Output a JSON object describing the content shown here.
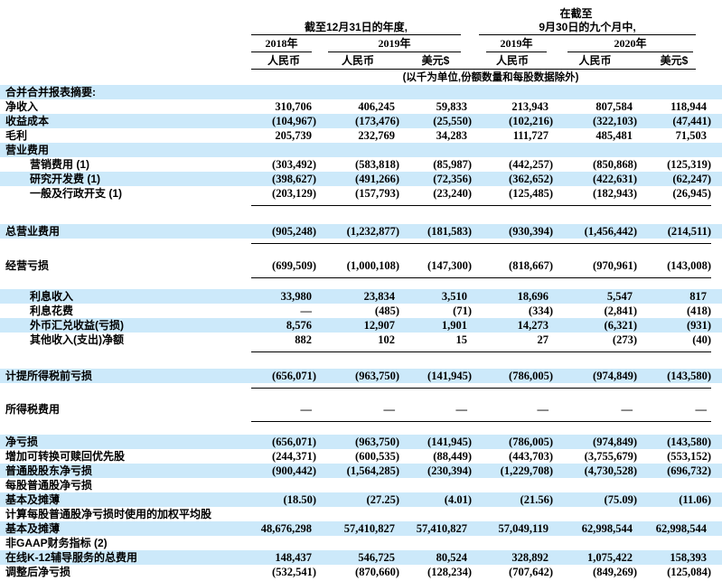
{
  "header": {
    "group2_pre": "在截至",
    "group1_title": "截至12月31日的年度,",
    "group2_title": "9月30日的九个月中,",
    "years": [
      "2018年",
      "2019年",
      "2019年",
      "2020年"
    ],
    "currencies": [
      "人民币",
      "人民币",
      "美元$",
      "人民币",
      "人民币",
      "美元$"
    ],
    "units_note": "(以千为单位,份额数量和每股数据除外)"
  },
  "colors": {
    "band": "#cce9fa",
    "rule": "#000000"
  },
  "rows": [
    {
      "type": "section",
      "label": "合并合并报表摘要:",
      "band": true
    },
    {
      "type": "data",
      "label": "净收入",
      "values": [
        "310,706",
        "406,245",
        "59,833",
        "213,943",
        "807,584",
        "118,944"
      ]
    },
    {
      "type": "data",
      "label": "收益成本",
      "band": true,
      "values": [
        "(104,967)",
        "(173,476)",
        "(25,550)",
        "(102,216)",
        "(322,103)",
        "(47,441)"
      ]
    },
    {
      "type": "data",
      "label": "毛利",
      "values": [
        "205,739",
        "232,769",
        "34,283",
        "111,727",
        "485,481",
        "71,503"
      ]
    },
    {
      "type": "section",
      "label": "营业费用",
      "band": true
    },
    {
      "type": "data",
      "label": "营销费用 (1)",
      "indent": true,
      "values": [
        "(303,492)",
        "(583,818)",
        "(85,987)",
        "(442,257)",
        "(850,868)",
        "(125,319)"
      ]
    },
    {
      "type": "data",
      "label": "研究开发费 (1)",
      "indent": true,
      "band": true,
      "values": [
        "(398,627)",
        "(491,266)",
        "(72,356)",
        "(362,652)",
        "(422,631)",
        "(62,247)"
      ]
    },
    {
      "type": "data",
      "label": "一般及行政开支 (1)",
      "indent": true,
      "underline": true,
      "values": [
        "(203,129)",
        "(157,793)",
        "(23,240)",
        "(125,485)",
        "(182,943)",
        "(26,945)"
      ]
    },
    {
      "type": "spacer",
      "h": 20
    },
    {
      "type": "data",
      "label": "总营业费用",
      "band": true,
      "underline": true,
      "values": [
        "(905,248)",
        "(1,232,877)",
        "(181,583)",
        "(930,394)",
        "(1,456,442)",
        "(214,511)"
      ]
    },
    {
      "type": "spacer",
      "h": 16
    },
    {
      "type": "data",
      "label": "经营亏损",
      "underline": true,
      "values": [
        "(699,509)",
        "(1,000,108)",
        "(147,300)",
        "(818,667)",
        "(970,961)",
        "(143,008)"
      ]
    },
    {
      "type": "spacer",
      "h": 12
    },
    {
      "type": "data",
      "label": "利息收入",
      "indent": true,
      "band": true,
      "values": [
        "33,980",
        "23,834",
        "3,510",
        "18,696",
        "5,547",
        "817"
      ]
    },
    {
      "type": "data",
      "label": "利息花费",
      "indent": true,
      "values": [
        "—",
        "(485)",
        "(71)",
        "(334)",
        "(2,841)",
        "(418)"
      ]
    },
    {
      "type": "data",
      "label": "外币汇兑收益(亏损)",
      "indent": true,
      "band": true,
      "values": [
        "8,576",
        "12,907",
        "1,901",
        "14,273",
        "(6,321)",
        "(931)"
      ]
    },
    {
      "type": "data",
      "label": "其他收入(支出)净额",
      "indent": true,
      "underline": true,
      "values": [
        "882",
        "102",
        "15",
        "27",
        "(273)",
        "(40)"
      ]
    },
    {
      "type": "spacer",
      "h": 18
    },
    {
      "type": "data",
      "label": "计提所得税前亏损",
      "band": true,
      "underline": true,
      "values": [
        "(656,071)",
        "(963,750)",
        "(141,945)",
        "(786,005)",
        "(974,849)",
        "(143,580)"
      ]
    },
    {
      "type": "spacer",
      "h": 15
    },
    {
      "type": "data",
      "label": "所得税费用",
      "underline": true,
      "values": [
        "—",
        "—",
        "—",
        "—",
        "—",
        "—"
      ]
    },
    {
      "type": "spacer",
      "h": 14
    },
    {
      "type": "data",
      "label": "净亏损",
      "band": true,
      "values": [
        "(656,071)",
        "(963,750)",
        "(141,945)",
        "(786,005)",
        "(974,849)",
        "(143,580)"
      ]
    },
    {
      "type": "data",
      "label": "增加可转换可赎回优先股",
      "values": [
        "(244,371)",
        "(600,535)",
        "(88,449)",
        "(443,703)",
        "(3,755,679)",
        "(553,152)"
      ]
    },
    {
      "type": "data",
      "label": "普通股股东净亏损",
      "band": true,
      "values": [
        "(900,442)",
        "(1,564,285)",
        "(230,394)",
        "(1,229,708)",
        "(4,730,528)",
        "(696,732)"
      ]
    },
    {
      "type": "section",
      "label": "每股普通股净亏损"
    },
    {
      "type": "data",
      "label": "基本及摊薄",
      "band": true,
      "values": [
        "(18.50)",
        "(27.25)",
        "(4.01)",
        "(21.56)",
        "(75.09)",
        "(11.06)"
      ]
    },
    {
      "type": "section",
      "label": "计算每股普通股净亏损时使用的加权平均股"
    },
    {
      "type": "data",
      "label": "基本及摊薄",
      "band": true,
      "values": [
        "48,676,298",
        "57,410,827",
        "57,410,827",
        "57,049,119",
        "62,998,544",
        "62,998,544"
      ]
    },
    {
      "type": "section",
      "label": "非GAAP财务指标 (2)"
    },
    {
      "type": "data",
      "label": "在线K-12辅导服务的总费用",
      "band": true,
      "values": [
        "148,437",
        "546,725",
        "80,524",
        "328,892",
        "1,075,422",
        "158,393"
      ]
    },
    {
      "type": "data",
      "label": "调整后净亏损",
      "values": [
        "(532,541)",
        "(870,660)",
        "(128,234)",
        "(707,642)",
        "(849,269)",
        "(125,084)"
      ]
    }
  ]
}
